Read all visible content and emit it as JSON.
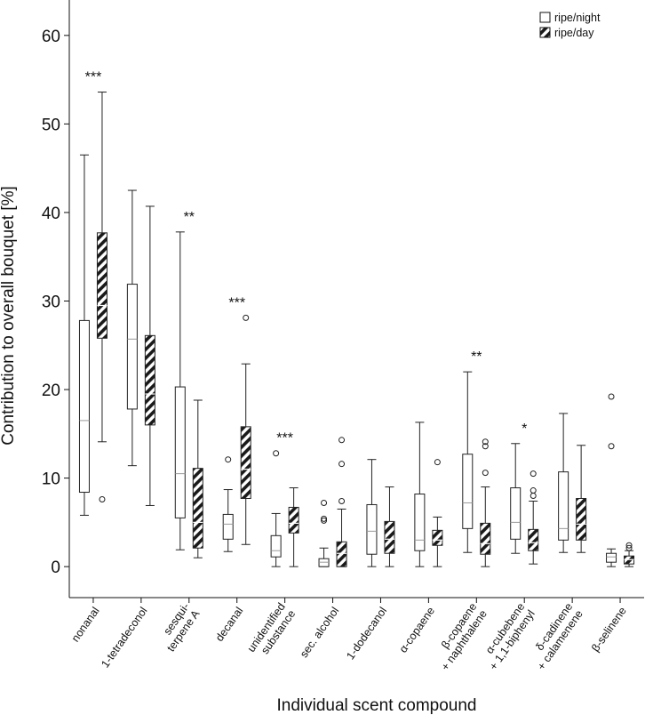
{
  "chart_data": {
    "type": "boxplot",
    "ylabel": "Contribution to overall bouquet [%]",
    "xlabel": "Individual scent compound",
    "ylim": [
      -3.5,
      64
    ],
    "yticks": [
      0,
      10,
      20,
      30,
      40,
      50,
      60
    ],
    "grid": false,
    "legend_position": "top-right",
    "series": [
      {
        "name": "ripe/night",
        "fill": "open",
        "color": "#ffffff"
      },
      {
        "name": "ripe/day",
        "fill": "hatched",
        "color": "#222222"
      }
    ],
    "categories": [
      {
        "lines": [
          "nonanal"
        ],
        "sig": "***",
        "night": {
          "min": 5.8,
          "q1": 8.4,
          "median": 16.5,
          "q3": 27.8,
          "max": 46.5,
          "outliers": []
        },
        "day": {
          "min": 14.1,
          "q1": 25.8,
          "median": 29.5,
          "q3": 37.7,
          "max": 53.6,
          "outliers": [
            7.6
          ]
        }
      },
      {
        "lines": [
          "1-tetradeconol"
        ],
        "sig": "",
        "night": {
          "min": 11.4,
          "q1": 17.8,
          "median": 25.7,
          "q3": 31.9,
          "max": 42.5,
          "outliers": []
        },
        "day": {
          "min": 6.9,
          "q1": 16.0,
          "median": 19.5,
          "q3": 26.1,
          "max": 40.7,
          "outliers": []
        }
      },
      {
        "lines": [
          "sesqui-",
          "terpene A"
        ],
        "sig": "**",
        "night": {
          "min": 1.9,
          "q1": 5.5,
          "median": 10.5,
          "q3": 20.3,
          "max": 37.8,
          "outliers": []
        },
        "day": {
          "min": 1.0,
          "q1": 2.1,
          "median": 5.0,
          "q3": 11.1,
          "max": 18.8,
          "outliers": []
        }
      },
      {
        "lines": [
          "decanal"
        ],
        "sig": "***",
        "night": {
          "min": 1.7,
          "q1": 3.1,
          "median": 4.8,
          "q3": 5.9,
          "max": 8.7,
          "outliers": [
            12.1
          ]
        },
        "day": {
          "min": 2.5,
          "q1": 7.7,
          "median": 11.0,
          "q3": 15.8,
          "max": 22.9,
          "outliers": [
            28.1
          ]
        }
      },
      {
        "lines": [
          "unidentified",
          "substance"
        ],
        "sig": "***",
        "night": {
          "min": 0.0,
          "q1": 1.1,
          "median": 1.8,
          "q3": 3.5,
          "max": 6.0,
          "outliers": [
            12.8
          ]
        },
        "day": {
          "min": 0.0,
          "q1": 3.8,
          "median": 4.9,
          "q3": 6.7,
          "max": 8.9,
          "outliers": []
        }
      },
      {
        "lines": [
          "sec. alcohol"
        ],
        "sig": "",
        "night": {
          "min": 0.0,
          "q1": 0.0,
          "median": 0.5,
          "q3": 0.9,
          "max": 2.1,
          "outliers": [
            5.2,
            5.4,
            7.2
          ]
        },
        "day": {
          "min": 0.0,
          "q1": 0.0,
          "median": 1.5,
          "q3": 2.8,
          "max": 6.5,
          "outliers": [
            7.4,
            11.6,
            14.3
          ]
        }
      },
      {
        "lines": [
          "1-dodecanol"
        ],
        "sig": "",
        "night": {
          "min": 0.0,
          "q1": 1.4,
          "median": 4.0,
          "q3": 7.0,
          "max": 12.1,
          "outliers": []
        },
        "day": {
          "min": 0.0,
          "q1": 1.5,
          "median": 3.1,
          "q3": 5.1,
          "max": 9.0,
          "outliers": []
        }
      },
      {
        "lines": [
          "α-copaene"
        ],
        "sig": "",
        "night": {
          "min": 0.0,
          "q1": 1.8,
          "median": 3.0,
          "q3": 8.2,
          "max": 16.3,
          "outliers": []
        },
        "day": {
          "min": 0.0,
          "q1": 2.4,
          "median": 3.0,
          "q3": 4.1,
          "max": 5.6,
          "outliers": [
            11.8
          ]
        }
      },
      {
        "lines": [
          "β-copaene",
          "+ naphthalene"
        ],
        "sig": "**",
        "night": {
          "min": 1.6,
          "q1": 4.3,
          "median": 7.2,
          "q3": 12.7,
          "max": 22.0,
          "outliers": []
        },
        "day": {
          "min": 0.0,
          "q1": 1.4,
          "median": 2.6,
          "q3": 4.9,
          "max": 9.0,
          "outliers": [
            10.6,
            13.6,
            14.1
          ]
        }
      },
      {
        "lines": [
          "α-cubebene",
          "+ 1,1-biphenyl"
        ],
        "sig": "*",
        "night": {
          "min": 1.5,
          "q1": 3.1,
          "median": 5.0,
          "q3": 8.9,
          "max": 13.9,
          "outliers": []
        },
        "day": {
          "min": 0.3,
          "q1": 1.8,
          "median": 2.7,
          "q3": 4.2,
          "max": 7.4,
          "outliers": [
            8.0,
            8.6,
            10.5
          ]
        }
      },
      {
        "lines": [
          "δ-cadinene",
          "+ calamenene"
        ],
        "sig": "",
        "night": {
          "min": 1.6,
          "q1": 3.0,
          "median": 4.3,
          "q3": 10.7,
          "max": 17.3,
          "outliers": []
        },
        "day": {
          "min": 1.6,
          "q1": 3.0,
          "median": 4.8,
          "q3": 7.7,
          "max": 13.7,
          "outliers": []
        }
      },
      {
        "lines": [
          "β-selinene"
        ],
        "sig": "",
        "night": {
          "min": 0.0,
          "q1": 0.5,
          "median": 1.1,
          "q3": 1.5,
          "max": 2.0,
          "outliers": [
            13.6,
            19.2
          ]
        },
        "day": {
          "min": 0.0,
          "q1": 0.3,
          "median": 0.8,
          "q3": 1.2,
          "max": 1.8,
          "outliers": [
            2.1,
            2.4
          ]
        }
      }
    ]
  }
}
